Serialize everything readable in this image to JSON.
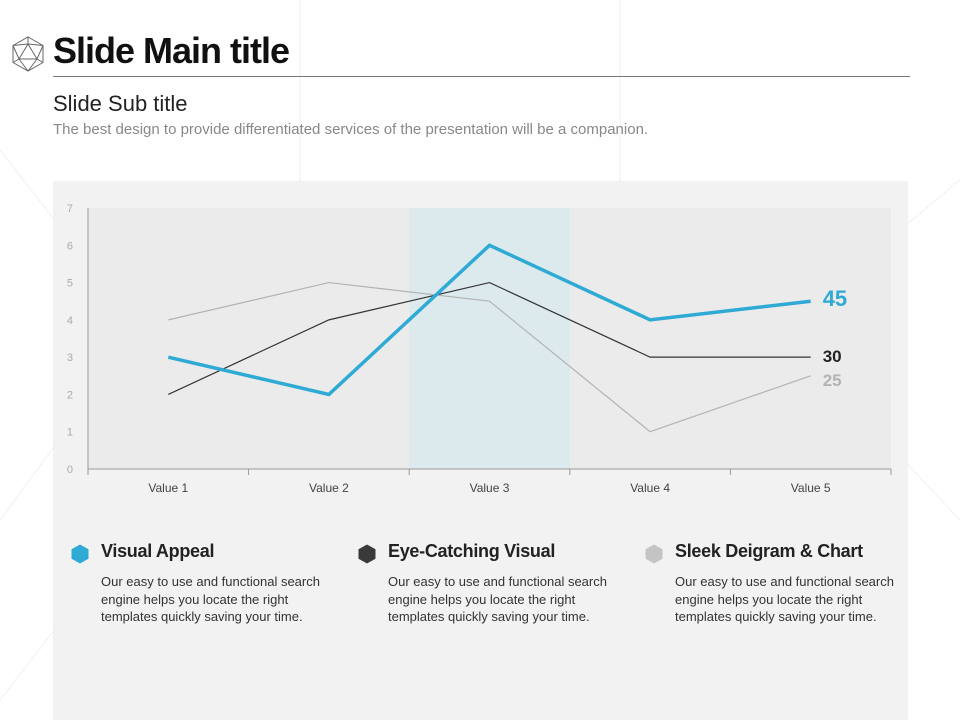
{
  "slide": {
    "title": "Slide Main title",
    "subtitle": "Slide Sub title",
    "description": "The best design to provide differentiated services of the presentation will be a companion."
  },
  "colors": {
    "accent": "#2eaad4",
    "dark": "#333333",
    "light": "#b3b3b3",
    "highlight": "#dceaed",
    "plot_bg": "#ebebeb",
    "panel_bg": "#f2f2f2"
  },
  "chart_data": {
    "type": "line",
    "categories": [
      "Value 1",
      "Value 2",
      "Value 3",
      "Value 4",
      "Value 5"
    ],
    "ylim": [
      0,
      7
    ],
    "yticks": [
      0,
      1,
      2,
      3,
      4,
      5,
      6,
      7
    ],
    "highlight_category": "Value 3",
    "series": [
      {
        "name": "light",
        "values": [
          4,
          5,
          4.5,
          1,
          2.5
        ],
        "end_label": "25",
        "color": "#b3b3b3"
      },
      {
        "name": "dark",
        "values": [
          2,
          4,
          5,
          3,
          3
        ],
        "end_label": "30",
        "color": "#333333"
      },
      {
        "name": "accent",
        "values": [
          3,
          2,
          6,
          4,
          4.5
        ],
        "end_label": "45",
        "color": "#2eaad4"
      }
    ]
  },
  "features": [
    {
      "icon": "hexagon-icon",
      "color": "#2eaad4",
      "title": "Visual Appeal",
      "desc": "Our easy to use and functional search engine helps you locate the right templates quickly saving your time."
    },
    {
      "icon": "hexagon-icon",
      "color": "#3a3a3a",
      "title": "Eye-Catching Visual",
      "desc": "Our easy to use and functional search engine helps you locate the right templates quickly saving your time."
    },
    {
      "icon": "hexagon-icon",
      "color": "#c4c4c4",
      "title": "Sleek Deigram & Chart",
      "desc": "Our easy to use and functional search engine helps you locate the right templates quickly saving your time."
    }
  ]
}
